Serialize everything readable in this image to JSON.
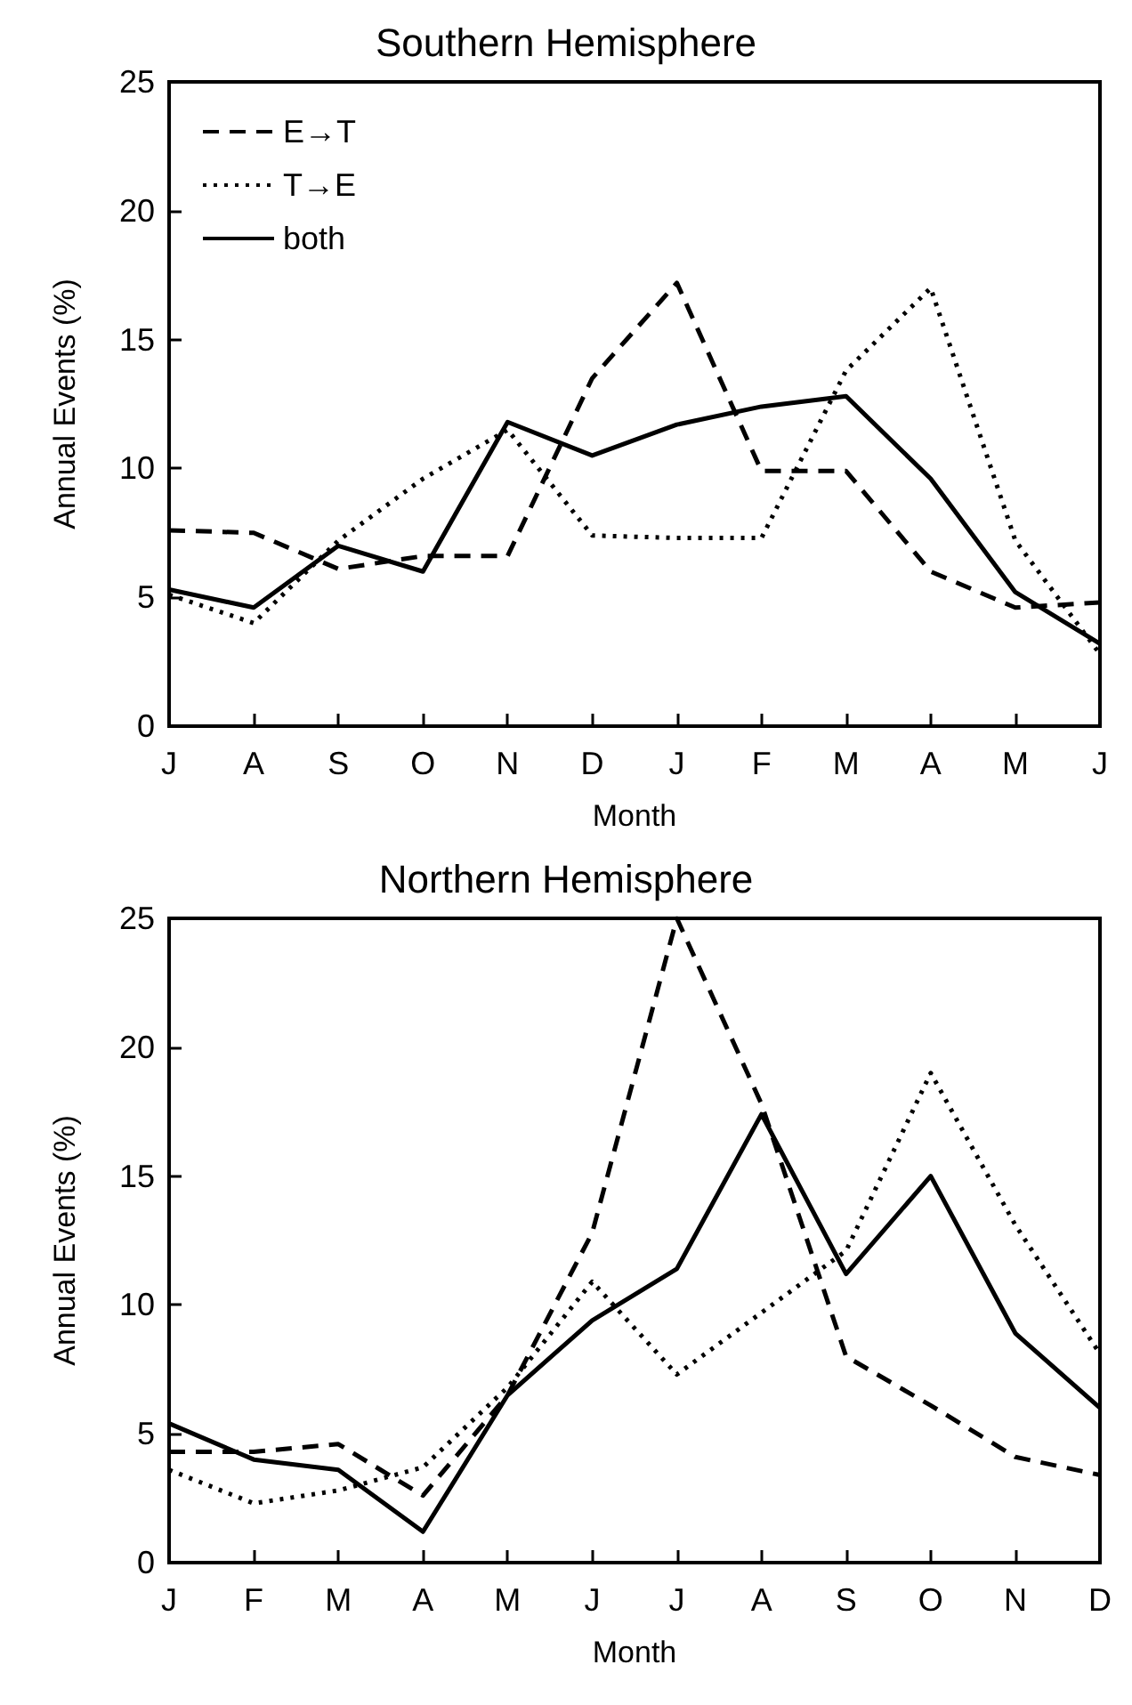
{
  "chart_data": [
    {
      "type": "line",
      "title": "Southern Hemisphere",
      "xlabel": "Month",
      "ylabel": "Annual Events (%)",
      "categories": [
        "J",
        "A",
        "S",
        "O",
        "N",
        "D",
        "J",
        "F",
        "M",
        "A",
        "M",
        "J"
      ],
      "ylim": [
        0,
        25
      ],
      "yticks": [
        0,
        5,
        10,
        15,
        20,
        25
      ],
      "grid": false,
      "legend": "top left",
      "marker": "none",
      "series": [
        {
          "name": "E→T",
          "color": "#000000",
          "line_style": "dashed",
          "values": [
            7.6,
            7.5,
            6.1,
            6.6,
            6.6,
            13.5,
            17.2,
            9.9,
            9.9,
            6.0,
            4.6,
            4.8
          ]
        },
        {
          "name": "T→E",
          "color": "#000000",
          "line_style": "dotted",
          "values": [
            5.1,
            4.0,
            7.2,
            9.6,
            11.5,
            7.4,
            7.3,
            7.3,
            13.8,
            17.0,
            7.2,
            2.8
          ]
        },
        {
          "name": "both",
          "color": "#000000",
          "line_style": "solid",
          "values": [
            5.3,
            4.6,
            7.0,
            6.0,
            11.8,
            10.5,
            11.7,
            12.4,
            12.8,
            9.6,
            5.2,
            3.2
          ]
        }
      ]
    },
    {
      "type": "line",
      "title": "Northern Hemisphere",
      "xlabel": "Month",
      "ylabel": "Annual Events (%)",
      "categories": [
        "J",
        "F",
        "M",
        "A",
        "M",
        "J",
        "J",
        "A",
        "S",
        "O",
        "N",
        "D"
      ],
      "ylim": [
        0,
        25
      ],
      "yticks": [
        0,
        5,
        10,
        15,
        20,
        25
      ],
      "grid": false,
      "marker": "none",
      "series": [
        {
          "color": "#000000",
          "line_style": "dashed",
          "values": [
            4.3,
            4.3,
            4.6,
            2.6,
            6.5,
            12.8,
            25,
            17.8,
            8.0,
            6.1,
            4.1,
            3.4
          ]
        },
        {
          "color": "#000000",
          "line_style": "dotted",
          "values": [
            3.6,
            2.3,
            2.8,
            3.7,
            6.8,
            10.9,
            7.3,
            9.7,
            12.1,
            19.0,
            13.1,
            8.1
          ]
        },
        {
          "color": "#000000",
          "line_style": "solid",
          "values": [
            5.4,
            4.0,
            3.6,
            1.2,
            6.5,
            9.4,
            11.4,
            17.4,
            11.2,
            15.0,
            8.9,
            6.0
          ]
        }
      ]
    }
  ]
}
